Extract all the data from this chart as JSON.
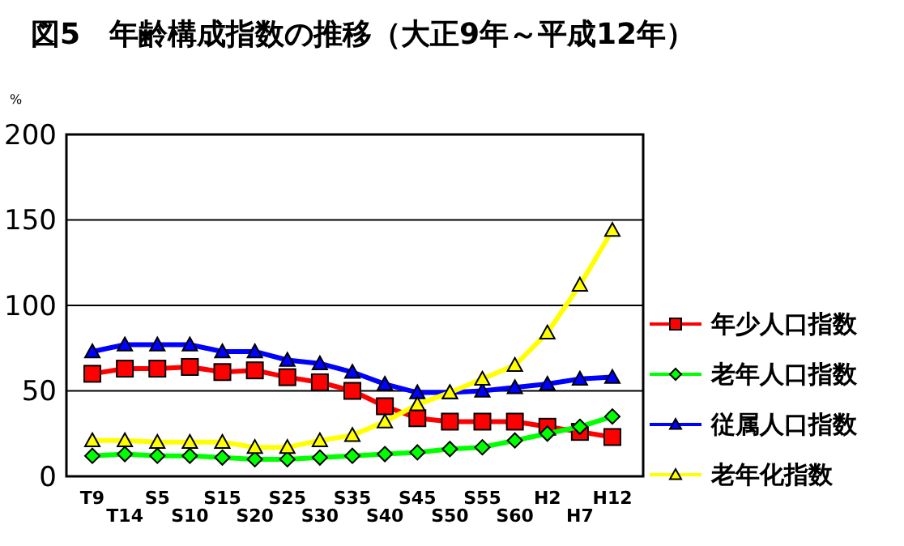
{
  "chart_data": {
    "type": "line",
    "title": "図5　年齢構成指数の推移（大正9年～平成12年）",
    "ylabel": "%",
    "categories": [
      "T9",
      "T14",
      "S5",
      "S10",
      "S15",
      "S20",
      "S25",
      "S30",
      "S35",
      "S40",
      "S45",
      "S50",
      "S55",
      "S60",
      "H2",
      "H7",
      "H12"
    ],
    "ylim": [
      0,
      200
    ],
    "yticks": [
      0,
      50,
      100,
      150,
      200
    ],
    "grid": "y",
    "legend": "right",
    "series": [
      {
        "name": "年少人口指数",
        "color": "#ff0000",
        "marker": "square",
        "values": [
          60,
          63,
          63,
          64,
          61,
          62,
          58,
          55,
          50,
          41,
          34,
          32,
          32,
          32,
          29,
          26,
          23
        ]
      },
      {
        "name": "老年人口指数",
        "color": "#00ff00",
        "marker": "diamond",
        "values": [
          12,
          13,
          12,
          12,
          11,
          10,
          10,
          11,
          12,
          13,
          14,
          16,
          17,
          21,
          25,
          29,
          35
        ]
      },
      {
        "name": "従属人口指数",
        "color": "#0000ff",
        "marker": "triangle",
        "values": [
          73,
          77,
          77,
          77,
          73,
          73,
          68,
          66,
          61,
          54,
          49,
          49,
          50,
          52,
          54,
          57,
          58
        ]
      },
      {
        "name": "老年化指数",
        "color": "#ffff00",
        "marker": "triangle",
        "values": [
          21,
          21,
          20,
          20,
          20,
          17,
          17,
          21,
          24,
          32,
          42,
          49,
          57,
          65,
          84,
          112,
          144
        ]
      }
    ]
  }
}
